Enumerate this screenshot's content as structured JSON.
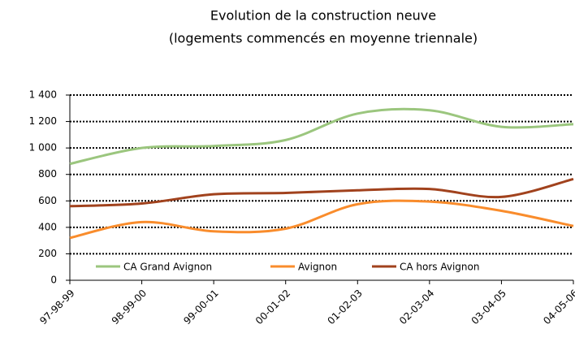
{
  "chart_data": {
    "type": "line",
    "title": "Evolution de la construction neuve",
    "subtitle": "(logements commencés en moyenne triennale)",
    "categories": [
      "97-98-99",
      "98-99-00",
      "99-00-01",
      "00-01-02",
      "01-02-03",
      "02-03-04",
      "03-04-05",
      "04-05-06"
    ],
    "series": [
      {
        "name": "CA Grand Avignon",
        "color": "#9bc67e",
        "values": [
          880,
          1000,
          1015,
          1060,
          1260,
          1285,
          1160,
          1180
        ]
      },
      {
        "name": "Avignon",
        "color": "#f98c2c",
        "values": [
          320,
          440,
          370,
          390,
          575,
          595,
          525,
          410
        ]
      },
      {
        "name": "CA hors Avignon",
        "color": "#a1421d",
        "values": [
          560,
          580,
          650,
          660,
          680,
          690,
          630,
          765
        ]
      }
    ],
    "ylim": [
      0,
      1400
    ],
    "yticks": [
      0,
      200,
      400,
      600,
      800,
      {
        "value": 1000,
        "label": "1 000"
      },
      {
        "value": 1200,
        "label": "1 200"
      },
      {
        "value": 1400,
        "label": "1 400"
      }
    ],
    "grid": true,
    "legend": "bottom"
  }
}
